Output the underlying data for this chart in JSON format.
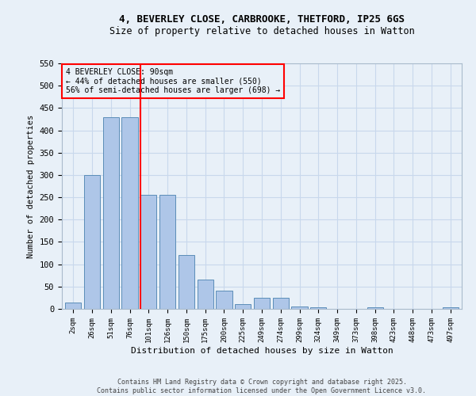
{
  "title_line1": "4, BEVERLEY CLOSE, CARBROOKE, THETFORD, IP25 6GS",
  "title_line2": "Size of property relative to detached houses in Watton",
  "xlabel": "Distribution of detached houses by size in Watton",
  "ylabel": "Number of detached properties",
  "categories": [
    "2sqm",
    "26sqm",
    "51sqm",
    "76sqm",
    "101sqm",
    "126sqm",
    "150sqm",
    "175sqm",
    "200sqm",
    "225sqm",
    "249sqm",
    "274sqm",
    "299sqm",
    "324sqm",
    "349sqm",
    "373sqm",
    "398sqm",
    "423sqm",
    "448sqm",
    "473sqm",
    "497sqm"
  ],
  "values": [
    15,
    300,
    430,
    430,
    255,
    255,
    120,
    65,
    40,
    10,
    25,
    25,
    5,
    3,
    0,
    0,
    3,
    0,
    0,
    0,
    3
  ],
  "bar_color": "#aec6e8",
  "bar_edge_color": "#5b8db8",
  "grid_color": "#c8d8ec",
  "background_color": "#e8f0f8",
  "vline_color": "red",
  "vline_pos": 3.56,
  "annotation_text": "4 BEVERLEY CLOSE: 90sqm\n← 44% of detached houses are smaller (550)\n56% of semi-detached houses are larger (698) →",
  "annotation_box_color": "red",
  "ylim_max": 550,
  "yticks": [
    0,
    50,
    100,
    150,
    200,
    250,
    300,
    350,
    400,
    450,
    500,
    550
  ],
  "footer_line1": "Contains HM Land Registry data © Crown copyright and database right 2025.",
  "footer_line2": "Contains public sector information licensed under the Open Government Licence v3.0."
}
